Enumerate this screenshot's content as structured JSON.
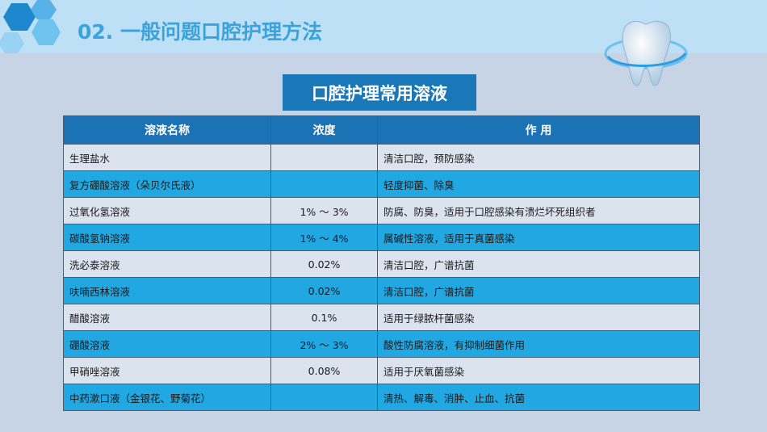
{
  "header": {
    "title": "02. 一般问题口腔护理方法"
  },
  "subtitle": "口腔护理常用溶液",
  "table": {
    "columns": [
      "溶液名称",
      "浓度",
      "作 用"
    ],
    "rows": [
      [
        "生理盐水",
        null,
        "清洁口腔，预防感染"
      ],
      [
        "复方硼酸溶液（朵贝尔氏液）",
        null,
        "轻度抑菌、除臭"
      ],
      [
        "过氧化氢溶液",
        "1% ～ 3%",
        "防腐、防臭，适用于口腔感染有溃烂坏死组织者"
      ],
      [
        "碳酸氢钠溶液",
        "1% ～ 4%",
        "属碱性溶液，适用于真菌感染"
      ],
      [
        "洗必泰溶液",
        "0.02%",
        "清洁口腔，广谱抗菌"
      ],
      [
        "呋喃西林溶液",
        "0.02%",
        "清洁口腔，广谱抗菌"
      ],
      [
        "醋酸溶液",
        "0.1%",
        "适用于绿脓杆菌感染"
      ],
      [
        "硼酸溶液",
        "2% ～ 3%",
        "酸性防腐溶液，有抑制细菌作用"
      ],
      [
        "甲硝唑溶液",
        "0.08%",
        "适用于厌氧菌感染"
      ],
      [
        "中药漱口液（金银花、野菊花）",
        null,
        "清热、解毒、消肿、止血、抗菌"
      ]
    ]
  }
}
